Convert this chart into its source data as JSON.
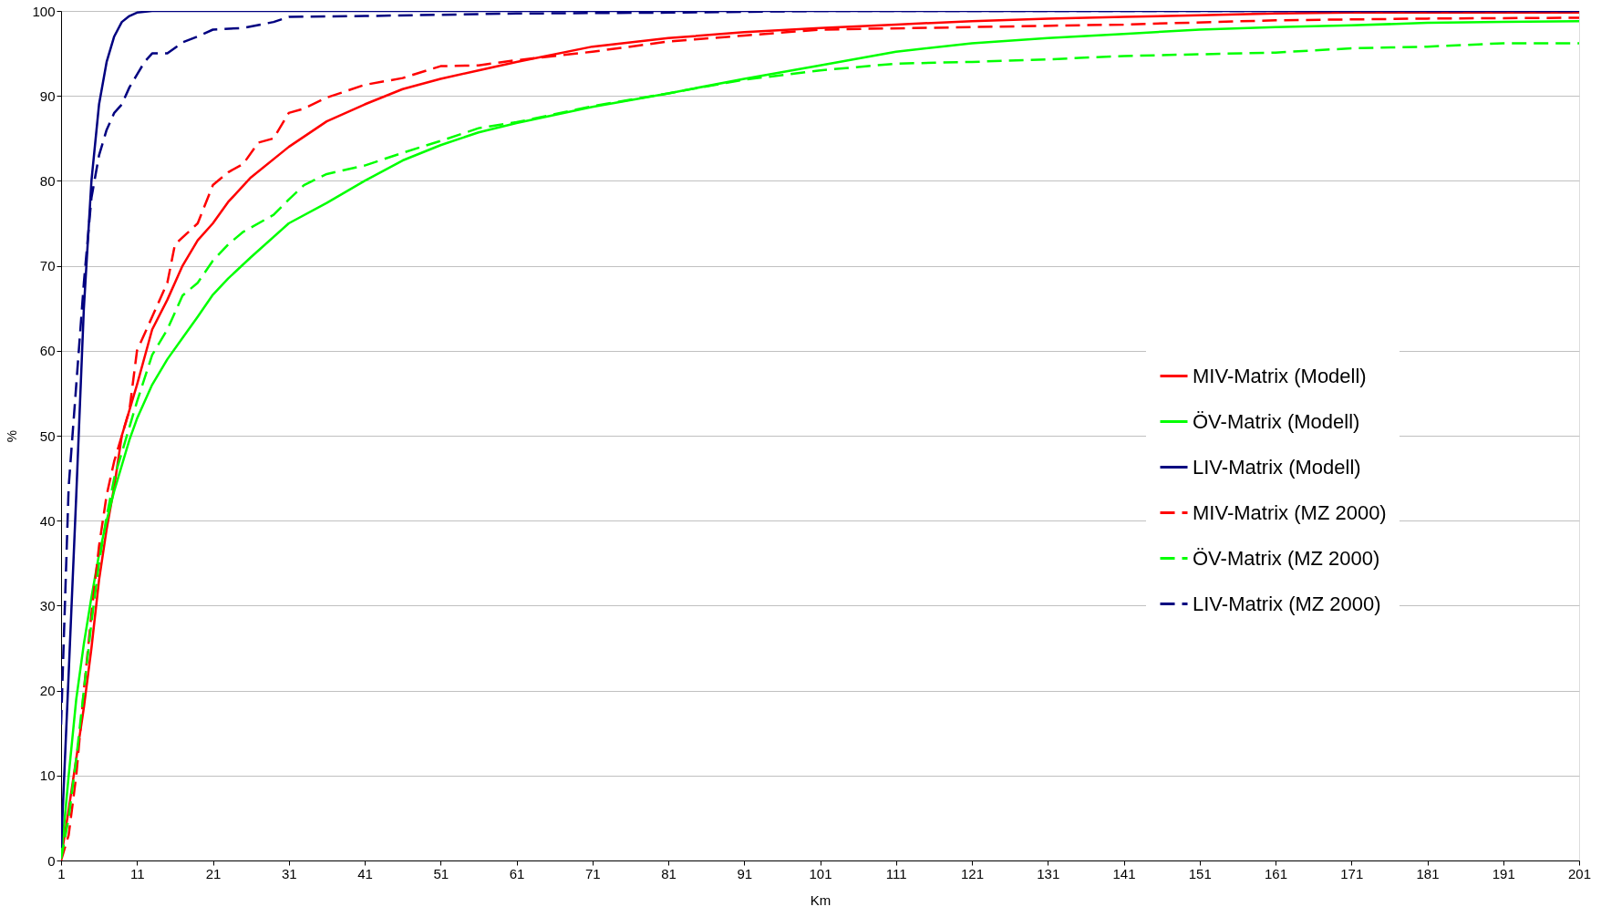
{
  "chart_data": {
    "type": "line",
    "xlabel": "Km",
    "ylabel": "%",
    "xlim": [
      1,
      201
    ],
    "xticks": [
      1,
      11,
      21,
      31,
      41,
      51,
      61,
      71,
      81,
      91,
      101,
      111,
      121,
      131,
      141,
      151,
      161,
      171,
      181,
      191,
      201
    ],
    "ylim": [
      0,
      100
    ],
    "yticks": [
      0,
      10,
      20,
      30,
      40,
      50,
      60,
      70,
      80,
      90,
      100
    ],
    "grid": "y",
    "legend": "right",
    "marker": "none",
    "series": [
      {
        "name": "MIV-Matrix (Modell)",
        "color": "#ff0000",
        "line_style": "solid",
        "x": [
          1,
          2,
          3,
          4,
          5,
          6,
          7,
          8,
          9,
          10,
          11,
          13,
          15,
          17,
          19,
          21,
          23,
          26,
          31,
          36,
          41,
          46,
          51,
          56,
          61,
          71,
          81,
          91,
          101,
          111,
          121,
          131,
          141,
          151,
          161,
          171,
          181,
          201
        ],
        "values": [
          0.3,
          6,
          12,
          18,
          25,
          33,
          39,
          44,
          50,
          53,
          56,
          62.5,
          66,
          70,
          73,
          75,
          77.5,
          80.4,
          84,
          87,
          89,
          90.8,
          92,
          93,
          94,
          95.8,
          96.8,
          97.5,
          98,
          98.4,
          98.8,
          99.1,
          99.3,
          99.5,
          99.7,
          99.8,
          99.8,
          99.8
        ]
      },
      {
        "name": "ÖV-Matrix (Modell)",
        "color": "#00ff00",
        "line_style": "solid",
        "x": [
          1,
          2,
          3,
          4,
          5,
          6,
          7,
          8,
          9,
          10,
          11,
          13,
          15,
          17,
          19,
          21,
          23,
          26,
          31,
          36,
          41,
          46,
          51,
          56,
          61,
          71,
          81,
          91,
          101,
          111,
          121,
          131,
          141,
          151,
          161,
          171,
          181,
          191,
          201
        ],
        "values": [
          0.3,
          10,
          19,
          25.5,
          31,
          36,
          40,
          43.5,
          46.5,
          49.5,
          52,
          56,
          59,
          61.5,
          64,
          66.6,
          68.5,
          71,
          75,
          77.4,
          80,
          82.4,
          84.2,
          85.7,
          86.8,
          88.7,
          90.3,
          92,
          93.6,
          95.2,
          96.2,
          96.8,
          97.3,
          97.8,
          98.1,
          98.3,
          98.6,
          98.7,
          98.8
        ]
      },
      {
        "name": "LIV-Matrix (Modell)",
        "color": "#000080",
        "line_style": "solid",
        "x": [
          1,
          2,
          3,
          4,
          5,
          6,
          7,
          8,
          9,
          10,
          11,
          13,
          201
        ],
        "values": [
          1.5,
          22,
          43,
          65,
          80,
          89,
          94,
          97,
          98.7,
          99.4,
          99.8,
          100,
          100
        ]
      },
      {
        "name": "MIV-Matrix (MZ 2000)",
        "color": "#ff0000",
        "line_style": "dashed",
        "x": [
          1,
          2,
          3,
          4,
          5,
          6,
          7,
          8,
          9,
          10,
          11,
          13,
          15,
          16,
          19,
          21,
          23,
          25,
          27,
          29,
          31,
          33,
          36,
          41,
          46,
          51,
          56,
          61,
          71,
          81,
          91,
          101,
          121,
          141,
          161,
          181,
          201
        ],
        "values": [
          0,
          3,
          10,
          20,
          29,
          37,
          43,
          47,
          50,
          53,
          60,
          64,
          68,
          72.5,
          75,
          79.5,
          81,
          82,
          84.5,
          85,
          88,
          88.5,
          89.8,
          91.3,
          92.1,
          93.5,
          93.6,
          94.2,
          95.2,
          96.4,
          97.1,
          97.8,
          98.1,
          98.4,
          98.9,
          99.1,
          99.2
        ]
      },
      {
        "name": "ÖV-Matrix (MZ 2000)",
        "color": "#00ff00",
        "line_style": "dashed",
        "x": [
          1,
          2,
          3,
          4,
          5,
          6,
          7,
          8,
          9,
          10,
          11,
          13,
          15,
          17,
          19,
          21,
          23,
          25,
          29,
          31,
          33,
          36,
          41,
          46,
          51,
          56,
          61,
          71,
          81,
          91,
          101,
          111,
          121,
          131,
          141,
          151,
          161,
          171,
          181,
          191,
          201
        ],
        "values": [
          0.2,
          5,
          12,
          20,
          28,
          35,
          40.5,
          45,
          48,
          51,
          54,
          59.5,
          62.5,
          66.5,
          68,
          70.6,
          72.5,
          74,
          76,
          77.8,
          79.5,
          80.8,
          81.8,
          83.3,
          84.7,
          86.2,
          86.9,
          88.8,
          90.3,
          91.9,
          93,
          93.8,
          94,
          94.3,
          94.7,
          94.9,
          95.1,
          95.6,
          95.8,
          96.2,
          96.2
        ]
      },
      {
        "name": "LIV-Matrix (MZ 2000)",
        "color": "#000080",
        "line_style": "dashed",
        "x": [
          1,
          2,
          3,
          4,
          5,
          6,
          7,
          8,
          9,
          10,
          11,
          12,
          13,
          15,
          17,
          19,
          21,
          25,
          29,
          31,
          41,
          61,
          81,
          101,
          201
        ],
        "values": [
          16,
          44,
          56,
          68,
          78,
          83,
          86,
          88,
          89,
          91,
          92.5,
          94,
          95,
          95,
          96.3,
          97,
          97.8,
          98,
          98.7,
          99.3,
          99.4,
          99.7,
          99.8,
          100,
          100
        ]
      }
    ]
  }
}
